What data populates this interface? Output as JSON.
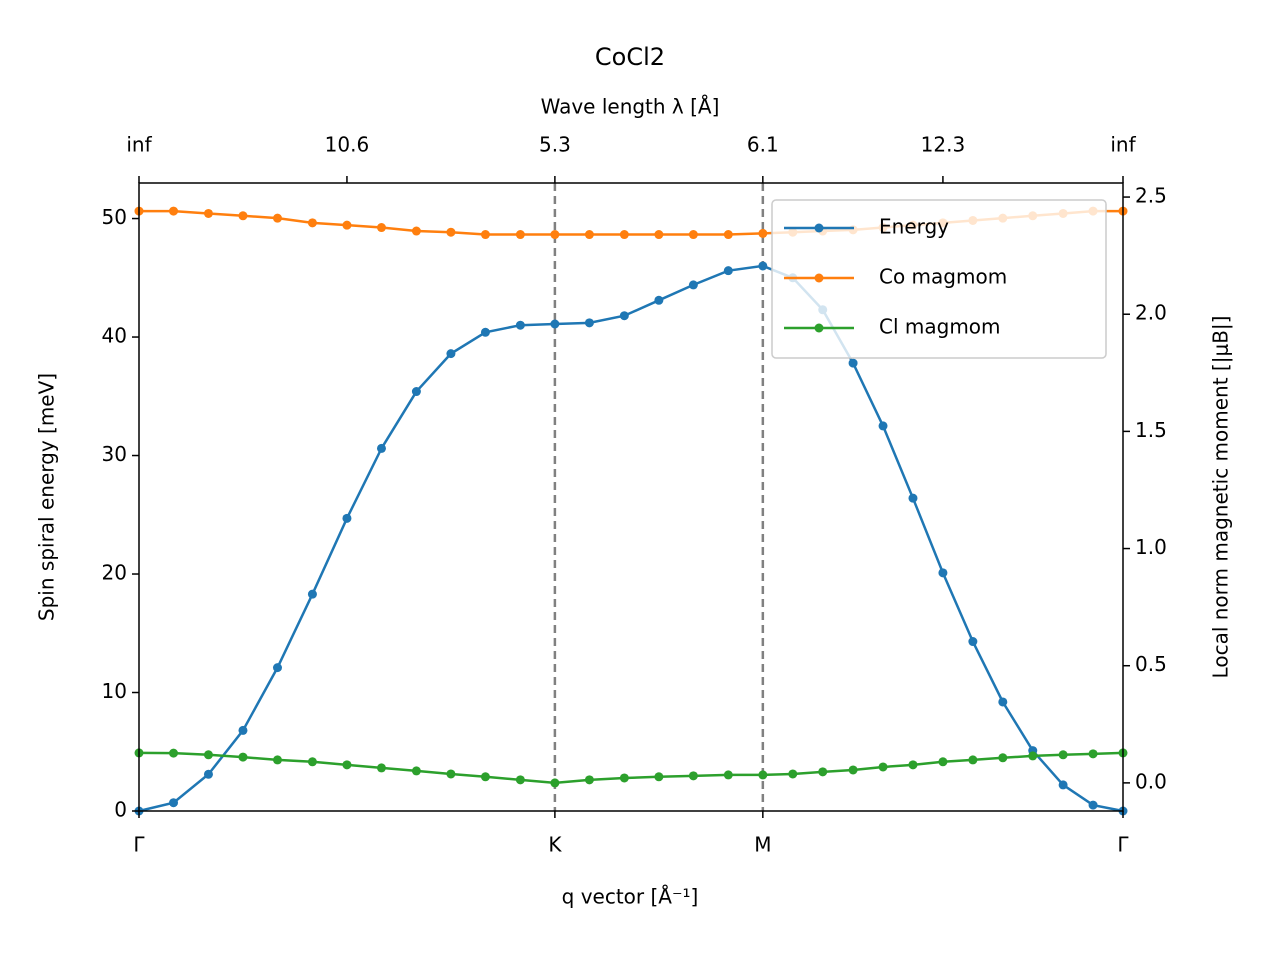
{
  "chart_data": {
    "type": "line",
    "title": "CoCl2",
    "xlabel": "q vector [Å⁻¹]",
    "x2label": "Wave length λ [Å]",
    "ylabel": "Spin spiral energy [meV]",
    "y2label": "Local norm magnetic moment [|μB|]",
    "x": [
      0,
      0.083,
      0.167,
      0.25,
      0.333,
      0.417,
      0.5,
      0.583,
      0.667,
      0.75,
      0.833,
      0.917,
      1.0,
      1.083,
      1.167,
      1.25,
      1.333,
      1.417,
      1.5,
      1.572,
      1.644,
      1.717,
      1.789,
      1.861,
      1.933,
      2.005,
      2.077,
      2.149,
      2.222,
      2.294,
      2.366
    ],
    "series": [
      {
        "name": "Energy",
        "color": "#1f77b4",
        "axis": "y",
        "values": [
          0,
          0.7,
          3.1,
          6.8,
          12.1,
          18.3,
          24.7,
          30.6,
          35.4,
          38.6,
          40.4,
          41.0,
          41.1,
          41.2,
          41.8,
          43.1,
          44.4,
          45.6,
          46.0,
          45.0,
          42.3,
          37.8,
          32.5,
          26.4,
          20.1,
          14.3,
          9.2,
          5.1,
          2.2,
          0.5,
          0
        ]
      },
      {
        "name": "Co magmom",
        "color": "#ff7f0e",
        "axis": "y2",
        "values": [
          2.44,
          2.44,
          2.43,
          2.42,
          2.41,
          2.39,
          2.38,
          2.37,
          2.355,
          2.35,
          2.34,
          2.34,
          2.34,
          2.34,
          2.34,
          2.34,
          2.34,
          2.34,
          2.345,
          2.35,
          2.355,
          2.36,
          2.37,
          2.38,
          2.39,
          2.4,
          2.41,
          2.42,
          2.43,
          2.44,
          2.44
        ]
      },
      {
        "name": "Cl magmom",
        "color": "#2ca02c",
        "axis": "y2",
        "values": [
          0.128,
          0.127,
          0.12,
          0.11,
          0.098,
          0.09,
          0.077,
          0.064,
          0.051,
          0.038,
          0.026,
          0.013,
          0.0,
          0.013,
          0.021,
          0.026,
          0.03,
          0.034,
          0.034,
          0.038,
          0.047,
          0.055,
          0.068,
          0.077,
          0.09,
          0.098,
          0.107,
          0.115,
          0.12,
          0.124,
          0.128
        ]
      }
    ],
    "xlim": [
      0,
      2.366
    ],
    "xticks": [
      {
        "value": 0,
        "label": "Γ"
      },
      {
        "value": 1.0,
        "label": "K"
      },
      {
        "value": 1.5,
        "label": "M"
      },
      {
        "value": 2.366,
        "label": "Γ"
      }
    ],
    "x2ticks": [
      {
        "value": 0,
        "label": "inf"
      },
      {
        "value": 0.5,
        "label": "10.6"
      },
      {
        "value": 1.0,
        "label": "5.3"
      },
      {
        "value": 1.5,
        "label": "6.1"
      },
      {
        "value": 1.933,
        "label": "12.3"
      },
      {
        "value": 2.366,
        "label": "inf"
      }
    ],
    "ylim": [
      0,
      53
    ],
    "yticks": [
      0,
      10,
      20,
      30,
      40,
      50
    ],
    "y2lim": [
      -0.12,
      2.56
    ],
    "y2ticks": [
      {
        "value": 0,
        "label": "0.0"
      },
      0.5,
      {
        "value": 1,
        "label": "1.0"
      },
      1.5,
      {
        "value": 2,
        "label": "2.0"
      },
      2.5
    ],
    "vlines": [
      1.0,
      1.5
    ],
    "legend": "upper right"
  }
}
